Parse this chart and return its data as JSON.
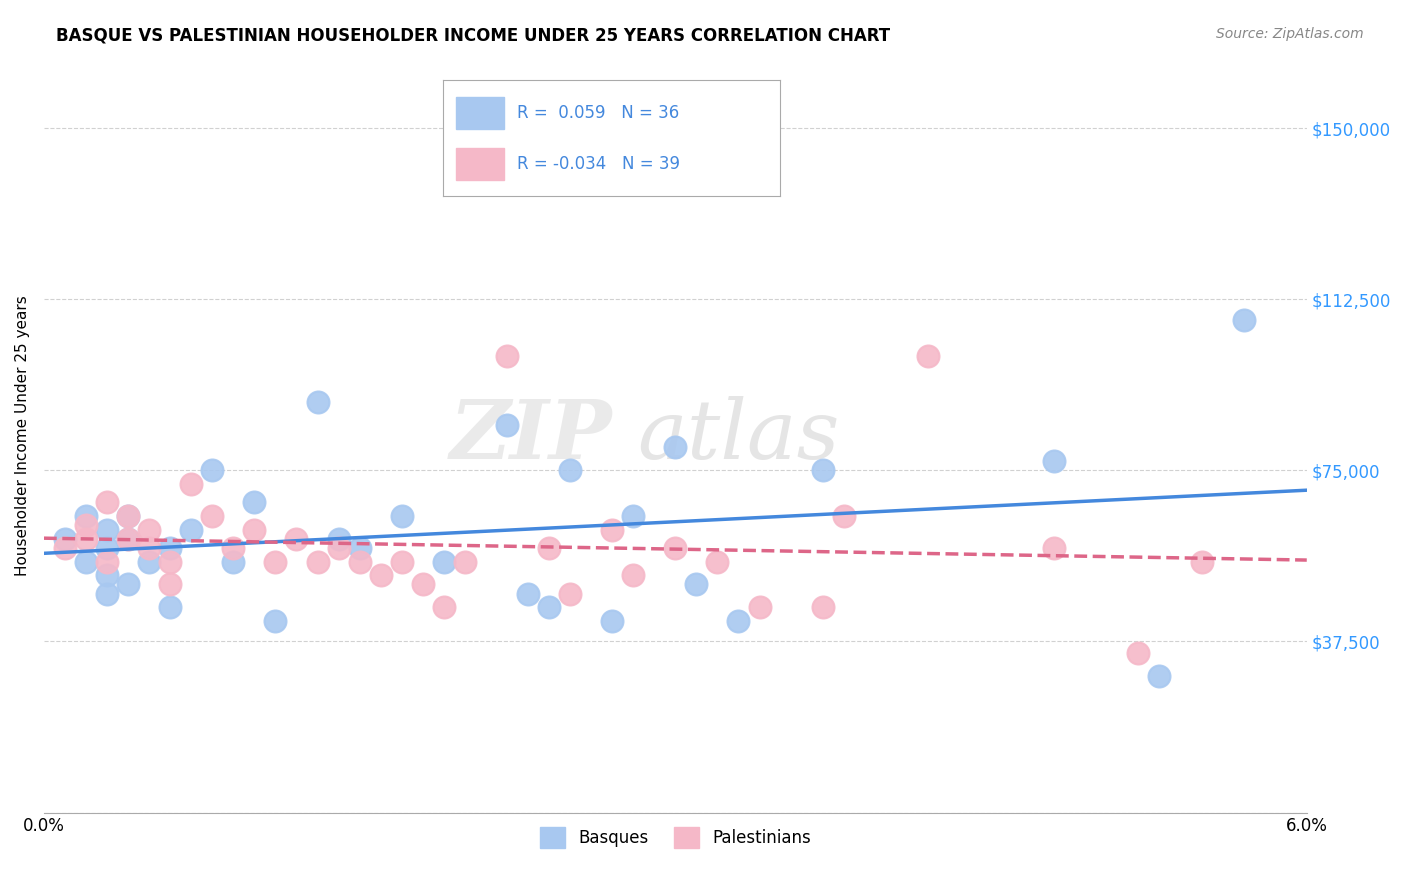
{
  "title": "BASQUE VS PALESTINIAN HOUSEHOLDER INCOME UNDER 25 YEARS CORRELATION CHART",
  "source": "Source: ZipAtlas.com",
  "ylabel": "Householder Income Under 25 years",
  "xlim": [
    0.0,
    0.06
  ],
  "ylim": [
    0,
    165000
  ],
  "yticks": [
    0,
    37500,
    75000,
    112500,
    150000
  ],
  "ytick_labels": [
    "",
    "$37,500",
    "$75,000",
    "$112,500",
    "$150,000"
  ],
  "xticks": [
    0.0,
    0.01,
    0.02,
    0.03,
    0.04,
    0.05,
    0.06
  ],
  "xtick_labels": [
    "0.0%",
    "",
    "",
    "",
    "",
    "",
    "6.0%"
  ],
  "basque_R": 0.059,
  "basque_N": 36,
  "palestinian_R": -0.034,
  "palestinian_N": 39,
  "basque_color": "#a8c8f0",
  "palestinian_color": "#f5b8c8",
  "basque_line_color": "#4488dd",
  "palestinian_line_color": "#dd6688",
  "watermark_zip": "ZIP",
  "watermark_atlas": "atlas",
  "basque_x": [
    0.001,
    0.002,
    0.002,
    0.003,
    0.003,
    0.003,
    0.003,
    0.004,
    0.004,
    0.004,
    0.005,
    0.006,
    0.006,
    0.007,
    0.008,
    0.009,
    0.01,
    0.011,
    0.013,
    0.014,
    0.015,
    0.017,
    0.019,
    0.022,
    0.023,
    0.024,
    0.025,
    0.027,
    0.028,
    0.03,
    0.031,
    0.033,
    0.037,
    0.048,
    0.053,
    0.057
  ],
  "basque_y": [
    60000,
    65000,
    55000,
    62000,
    58000,
    52000,
    48000,
    60000,
    65000,
    50000,
    55000,
    58000,
    45000,
    62000,
    75000,
    55000,
    68000,
    42000,
    90000,
    60000,
    58000,
    65000,
    55000,
    85000,
    48000,
    45000,
    75000,
    42000,
    65000,
    80000,
    50000,
    42000,
    75000,
    77000,
    30000,
    108000
  ],
  "palestinian_x": [
    0.001,
    0.002,
    0.002,
    0.003,
    0.003,
    0.004,
    0.004,
    0.005,
    0.005,
    0.006,
    0.006,
    0.007,
    0.008,
    0.009,
    0.01,
    0.011,
    0.012,
    0.013,
    0.014,
    0.015,
    0.016,
    0.017,
    0.018,
    0.019,
    0.02,
    0.022,
    0.024,
    0.025,
    0.027,
    0.028,
    0.03,
    0.032,
    0.034,
    0.037,
    0.038,
    0.042,
    0.048,
    0.052,
    0.055
  ],
  "palestinian_y": [
    58000,
    63000,
    60000,
    68000,
    55000,
    65000,
    60000,
    58000,
    62000,
    55000,
    50000,
    72000,
    65000,
    58000,
    62000,
    55000,
    60000,
    55000,
    58000,
    55000,
    52000,
    55000,
    50000,
    45000,
    55000,
    100000,
    58000,
    48000,
    62000,
    52000,
    58000,
    55000,
    45000,
    45000,
    65000,
    100000,
    58000,
    35000,
    55000
  ]
}
